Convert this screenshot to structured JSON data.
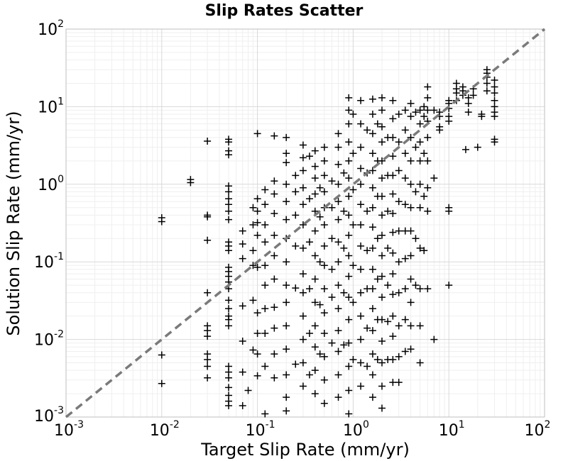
{
  "chart_data": {
    "type": "scatter",
    "title": "Slip Rates Scatter",
    "xlabel": "Target Slip Rate (mm/yr)",
    "ylabel": "Solution Slip Rate (mm/yr)",
    "xscale": "log",
    "yscale": "log",
    "xlim": [
      0.001,
      100
    ],
    "ylim": [
      0.001,
      100
    ],
    "grid": true,
    "x_ticks": [
      {
        "base": "10",
        "exp": "-3"
      },
      {
        "base": "10",
        "exp": "-2"
      },
      {
        "base": "10",
        "exp": "-1"
      },
      {
        "base": "10",
        "exp": "0"
      },
      {
        "base": "10",
        "exp": "1"
      },
      {
        "base": "10",
        "exp": "2"
      }
    ],
    "y_ticks": [
      {
        "base": "10",
        "exp": "-3"
      },
      {
        "base": "10",
        "exp": "-2"
      },
      {
        "base": "10",
        "exp": "-1"
      },
      {
        "base": "10",
        "exp": "0"
      },
      {
        "base": "10",
        "exp": "1"
      },
      {
        "base": "10",
        "exp": "2"
      }
    ],
    "marker": "plus",
    "marker_color": "#000000",
    "reference_line": {
      "style": "dashed",
      "color": "#7a7a7a",
      "x": [
        0.001,
        100
      ],
      "y": [
        0.001,
        100
      ]
    },
    "points": [
      [
        0.01,
        0.37
      ],
      [
        0.01,
        0.33
      ],
      [
        0.01,
        0.0063
      ],
      [
        0.01,
        0.0027
      ],
      [
        0.02,
        1.15
      ],
      [
        0.02,
        1.05
      ],
      [
        0.03,
        3.6
      ],
      [
        0.03,
        0.4
      ],
      [
        0.03,
        0.38
      ],
      [
        0.03,
        0.19
      ],
      [
        0.03,
        0.04
      ],
      [
        0.03,
        0.015
      ],
      [
        0.03,
        0.013
      ],
      [
        0.03,
        0.011
      ],
      [
        0.03,
        0.0065
      ],
      [
        0.03,
        0.0055
      ],
      [
        0.03,
        0.0045
      ],
      [
        0.03,
        0.0032
      ],
      [
        0.05,
        3.8
      ],
      [
        0.05,
        3.5
      ],
      [
        0.05,
        2.7
      ],
      [
        0.05,
        2.4
      ],
      [
        0.05,
        0.95
      ],
      [
        0.05,
        0.8
      ],
      [
        0.05,
        0.65
      ],
      [
        0.05,
        0.55
      ],
      [
        0.05,
        0.45
      ],
      [
        0.05,
        0.35
      ],
      [
        0.05,
        0.18
      ],
      [
        0.05,
        0.16
      ],
      [
        0.05,
        0.14
      ],
      [
        0.05,
        0.085
      ],
      [
        0.05,
        0.075
      ],
      [
        0.05,
        0.065
      ],
      [
        0.05,
        0.055
      ],
      [
        0.05,
        0.045
      ],
      [
        0.05,
        0.032
      ],
      [
        0.05,
        0.025
      ],
      [
        0.05,
        0.02
      ],
      [
        0.05,
        0.018
      ],
      [
        0.05,
        0.015
      ],
      [
        0.05,
        0.0045
      ],
      [
        0.05,
        0.0038
      ],
      [
        0.05,
        0.0032
      ],
      [
        0.05,
        0.0024
      ],
      [
        0.05,
        0.0019
      ],
      [
        0.05,
        0.0016
      ],
      [
        0.05,
        0.0014
      ],
      [
        0.07,
        0.25
      ],
      [
        0.07,
        0.17
      ],
      [
        0.07,
        0.11
      ],
      [
        0.07,
        0.027
      ],
      [
        0.07,
        0.0095
      ],
      [
        0.07,
        0.0038
      ],
      [
        0.07,
        0.0014
      ],
      [
        0.08,
        0.0022
      ],
      [
        0.09,
        0.5
      ],
      [
        0.09,
        0.3
      ],
      [
        0.09,
        0.14
      ],
      [
        0.09,
        0.09
      ],
      [
        0.09,
        0.032
      ],
      [
        0.09,
        0.0073
      ],
      [
        0.1,
        4.5
      ],
      [
        0.1,
        0.65
      ],
      [
        0.1,
        0.45
      ],
      [
        0.1,
        0.32
      ],
      [
        0.1,
        0.22
      ],
      [
        0.1,
        0.085
      ],
      [
        0.1,
        0.022
      ],
      [
        0.1,
        0.012
      ],
      [
        0.1,
        0.0065
      ],
      [
        0.1,
        0.0034
      ],
      [
        0.12,
        0.85
      ],
      [
        0.12,
        0.55
      ],
      [
        0.12,
        0.3
      ],
      [
        0.12,
        0.18
      ],
      [
        0.12,
        0.09
      ],
      [
        0.12,
        0.05
      ],
      [
        0.12,
        0.025
      ],
      [
        0.12,
        0.012
      ],
      [
        0.12,
        0.0045
      ],
      [
        0.12,
        0.0011
      ],
      [
        0.15,
        4.2
      ],
      [
        0.15,
        1.1
      ],
      [
        0.15,
        0.75
      ],
      [
        0.15,
        0.42
      ],
      [
        0.15,
        0.22
      ],
      [
        0.15,
        0.12
      ],
      [
        0.15,
        0.06
      ],
      [
        0.15,
        0.026
      ],
      [
        0.15,
        0.014
      ],
      [
        0.15,
        0.0065
      ],
      [
        0.15,
        0.0032
      ],
      [
        0.2,
        4.0
      ],
      [
        0.2,
        2.5
      ],
      [
        0.2,
        1.9
      ],
      [
        0.2,
        1.0
      ],
      [
        0.2,
        0.6
      ],
      [
        0.2,
        0.35
      ],
      [
        0.2,
        0.2
      ],
      [
        0.2,
        0.1
      ],
      [
        0.2,
        0.05
      ],
      [
        0.2,
        0.03
      ],
      [
        0.2,
        0.015
      ],
      [
        0.2,
        0.0075
      ],
      [
        0.2,
        0.0035
      ],
      [
        0.2,
        0.0018
      ],
      [
        0.2,
        0.0012
      ],
      [
        0.25,
        1.3
      ],
      [
        0.25,
        0.8
      ],
      [
        0.25,
        0.4
      ],
      [
        0.25,
        0.16
      ],
      [
        0.25,
        0.046
      ],
      [
        0.25,
        0.0048
      ],
      [
        0.3,
        3.2
      ],
      [
        0.3,
        2.2
      ],
      [
        0.3,
        1.5
      ],
      [
        0.3,
        0.9
      ],
      [
        0.3,
        0.55
      ],
      [
        0.3,
        0.3
      ],
      [
        0.3,
        0.15
      ],
      [
        0.3,
        0.07
      ],
      [
        0.3,
        0.04
      ],
      [
        0.3,
        0.02
      ],
      [
        0.3,
        0.01
      ],
      [
        0.3,
        0.005
      ],
      [
        0.3,
        0.0025
      ],
      [
        0.35,
        2.3
      ],
      [
        0.35,
        0.65
      ],
      [
        0.35,
        0.18
      ],
      [
        0.35,
        0.045
      ],
      [
        0.35,
        0.012
      ],
      [
        0.35,
        0.0035
      ],
      [
        0.4,
        2.7
      ],
      [
        0.4,
        1.7
      ],
      [
        0.4,
        1.2
      ],
      [
        0.4,
        0.75
      ],
      [
        0.4,
        0.45
      ],
      [
        0.4,
        0.25
      ],
      [
        0.4,
        0.12
      ],
      [
        0.4,
        0.06
      ],
      [
        0.4,
        0.03
      ],
      [
        0.4,
        0.015
      ],
      [
        0.4,
        0.008
      ],
      [
        0.4,
        0.004
      ],
      [
        0.4,
        0.002
      ],
      [
        0.45,
        0.9
      ],
      [
        0.45,
        0.38
      ],
      [
        0.45,
        0.1
      ],
      [
        0.45,
        0.028
      ],
      [
        0.45,
        0.0065
      ],
      [
        0.5,
        3.0
      ],
      [
        0.5,
        2.0
      ],
      [
        0.5,
        1.3
      ],
      [
        0.5,
        0.8
      ],
      [
        0.5,
        0.5
      ],
      [
        0.5,
        0.3
      ],
      [
        0.5,
        0.16
      ],
      [
        0.5,
        0.09
      ],
      [
        0.5,
        0.045
      ],
      [
        0.5,
        0.022
      ],
      [
        0.5,
        0.012
      ],
      [
        0.5,
        0.006
      ],
      [
        0.5,
        0.003
      ],
      [
        0.5,
        0.0015
      ],
      [
        0.6,
        1.1
      ],
      [
        0.6,
        0.5
      ],
      [
        0.6,
        0.2
      ],
      [
        0.6,
        0.08
      ],
      [
        0.6,
        0.035
      ],
      [
        0.6,
        0.009
      ],
      [
        0.7,
        4.5
      ],
      [
        0.7,
        3.0
      ],
      [
        0.7,
        1.8
      ],
      [
        0.7,
        1.0
      ],
      [
        0.7,
        0.6
      ],
      [
        0.7,
        0.35
      ],
      [
        0.7,
        0.18
      ],
      [
        0.7,
        0.1
      ],
      [
        0.7,
        0.05
      ],
      [
        0.7,
        0.025
      ],
      [
        0.7,
        0.013
      ],
      [
        0.7,
        0.007
      ],
      [
        0.7,
        0.0035
      ],
      [
        0.7,
        0.0018
      ],
      [
        0.8,
        1.4
      ],
      [
        0.8,
        0.45
      ],
      [
        0.8,
        0.15
      ],
      [
        0.8,
        0.04
      ],
      [
        0.8,
        0.0085
      ],
      [
        0.9,
        13.0
      ],
      [
        0.9,
        9.0
      ],
      [
        0.9,
        6.0
      ],
      [
        0.9,
        3.5
      ],
      [
        0.9,
        2.0
      ],
      [
        0.9,
        1.2
      ],
      [
        0.9,
        0.7
      ],
      [
        0.9,
        0.4
      ],
      [
        0.9,
        0.22
      ],
      [
        0.9,
        0.12
      ],
      [
        0.9,
        0.065
      ],
      [
        0.9,
        0.035
      ],
      [
        0.9,
        0.018
      ],
      [
        0.9,
        0.009
      ],
      [
        0.9,
        0.0045
      ],
      [
        0.9,
        0.0022
      ],
      [
        0.9,
        0.0011
      ],
      [
        1.0,
        8.0
      ],
      [
        1.0,
        2.5
      ],
      [
        1.0,
        0.85
      ],
      [
        1.0,
        0.3
      ],
      [
        1.0,
        0.09
      ],
      [
        1.0,
        0.03
      ],
      [
        1.0,
        0.0055
      ],
      [
        1.2,
        12.0
      ],
      [
        1.2,
        6.0
      ],
      [
        1.2,
        3.0
      ],
      [
        1.2,
        1.6
      ],
      [
        1.2,
        1.0
      ],
      [
        1.2,
        0.55
      ],
      [
        1.2,
        0.3
      ],
      [
        1.2,
        0.16
      ],
      [
        1.2,
        0.08
      ],
      [
        1.2,
        0.04
      ],
      [
        1.2,
        0.02
      ],
      [
        1.2,
        0.01
      ],
      [
        1.2,
        0.005
      ],
      [
        1.2,
        0.0025
      ],
      [
        1.4,
        5.0
      ],
      [
        1.4,
        1.4
      ],
      [
        1.4,
        0.45
      ],
      [
        1.4,
        0.14
      ],
      [
        1.4,
        0.045
      ],
      [
        1.4,
        0.014
      ],
      [
        1.4,
        0.0045
      ],
      [
        1.6,
        12.5
      ],
      [
        1.6,
        8.0
      ],
      [
        1.6,
        4.5
      ],
      [
        1.6,
        2.5
      ],
      [
        1.6,
        1.5
      ],
      [
        1.6,
        0.9
      ],
      [
        1.6,
        0.5
      ],
      [
        1.6,
        0.28
      ],
      [
        1.6,
        0.15
      ],
      [
        1.6,
        0.08
      ],
      [
        1.6,
        0.045
      ],
      [
        1.6,
        0.025
      ],
      [
        1.6,
        0.013
      ],
      [
        1.6,
        0.0065
      ],
      [
        1.6,
        0.0035
      ],
      [
        1.6,
        0.0018
      ],
      [
        1.8,
        6.0
      ],
      [
        1.8,
        2.0
      ],
      [
        1.8,
        0.7
      ],
      [
        1.8,
        0.2
      ],
      [
        1.8,
        0.06
      ],
      [
        1.8,
        0.018
      ],
      [
        1.8,
        0.0055
      ],
      [
        2.0,
        13.0
      ],
      [
        2.0,
        9.0
      ],
      [
        2.0,
        5.5
      ],
      [
        2.0,
        3.5
      ],
      [
        2.0,
        2.0
      ],
      [
        2.0,
        1.2
      ],
      [
        2.0,
        0.7
      ],
      [
        2.0,
        0.4
      ],
      [
        2.0,
        0.22
      ],
      [
        2.0,
        0.12
      ],
      [
        2.0,
        0.065
      ],
      [
        2.0,
        0.035
      ],
      [
        2.0,
        0.018
      ],
      [
        2.0,
        0.0095
      ],
      [
        2.0,
        0.005
      ],
      [
        2.0,
        0.0025
      ],
      [
        2.0,
        0.0013
      ],
      [
        2.3,
        4.0
      ],
      [
        2.3,
        1.3
      ],
      [
        2.3,
        0.45
      ],
      [
        2.3,
        0.15
      ],
      [
        2.3,
        0.05
      ],
      [
        2.3,
        0.017
      ],
      [
        2.3,
        0.0055
      ],
      [
        2.6,
        12.0
      ],
      [
        2.6,
        7.0
      ],
      [
        2.6,
        4.0
      ],
      [
        2.6,
        2.3
      ],
      [
        2.6,
        1.3
      ],
      [
        2.6,
        0.75
      ],
      [
        2.6,
        0.42
      ],
      [
        2.6,
        0.24
      ],
      [
        2.6,
        0.13
      ],
      [
        2.6,
        0.07
      ],
      [
        2.6,
        0.038
      ],
      [
        2.6,
        0.02
      ],
      [
        2.6,
        0.011
      ],
      [
        2.6,
        0.0055
      ],
      [
        2.6,
        0.0028
      ],
      [
        3.0,
        8.0
      ],
      [
        3.0,
        3.5
      ],
      [
        3.0,
        1.5
      ],
      [
        3.0,
        0.6
      ],
      [
        3.0,
        0.25
      ],
      [
        3.0,
        0.1
      ],
      [
        3.0,
        0.04
      ],
      [
        3.0,
        0.015
      ],
      [
        3.0,
        0.006
      ],
      [
        3.0,
        0.0028
      ],
      [
        3.5,
        9.0
      ],
      [
        3.5,
        5.0
      ],
      [
        3.5,
        2.5
      ],
      [
        3.5,
        1.2
      ],
      [
        3.5,
        0.55
      ],
      [
        3.5,
        0.25
      ],
      [
        3.5,
        0.11
      ],
      [
        3.5,
        0.045
      ],
      [
        3.5,
        0.018
      ],
      [
        3.5,
        0.007
      ],
      [
        4.0,
        11.0
      ],
      [
        4.0,
        7.5
      ],
      [
        4.0,
        4.0
      ],
      [
        4.0,
        2.0
      ],
      [
        4.0,
        1.0
      ],
      [
        4.0,
        0.5
      ],
      [
        4.0,
        0.25
      ],
      [
        4.0,
        0.12
      ],
      [
        4.0,
        0.06
      ],
      [
        4.0,
        0.03
      ],
      [
        4.0,
        0.015
      ],
      [
        4.0,
        0.0075
      ],
      [
        4.5,
        8.5
      ],
      [
        4.5,
        3.0
      ],
      [
        4.5,
        0.8
      ],
      [
        4.5,
        0.2
      ],
      [
        4.5,
        0.05
      ],
      [
        5.0,
        9.0
      ],
      [
        5.0,
        6.0
      ],
      [
        5.0,
        3.5
      ],
      [
        5.0,
        2.0
      ],
      [
        5.0,
        1.0
      ],
      [
        5.0,
        0.5
      ],
      [
        5.0,
        0.15
      ],
      [
        5.0,
        0.045
      ],
      [
        5.0,
        0.015
      ],
      [
        5.0,
        0.005
      ],
      [
        5.5,
        10.0
      ],
      [
        5.5,
        7.5
      ],
      [
        5.5,
        2.5
      ],
      [
        5.5,
        0.7
      ],
      [
        5.5,
        0.14
      ],
      [
        6.0,
        18.0
      ],
      [
        6.0,
        13.0
      ],
      [
        6.0,
        9.0
      ],
      [
        6.0,
        6.5
      ],
      [
        6.0,
        4.0
      ],
      [
        6.0,
        2.0
      ],
      [
        6.0,
        0.9
      ],
      [
        6.0,
        0.45
      ],
      [
        6.0,
        0.045
      ],
      [
        7.0,
        9.0
      ],
      [
        7.0,
        1.2
      ],
      [
        7.0,
        0.01
      ],
      [
        8.0,
        8.5
      ],
      [
        8.0,
        7.5
      ],
      [
        8.0,
        5.5
      ],
      [
        8.0,
        5.0
      ],
      [
        10.0,
        12.0
      ],
      [
        10.0,
        11.0
      ],
      [
        10.0,
        9.5
      ],
      [
        10.0,
        7.5
      ],
      [
        10.0,
        6.5
      ],
      [
        10.0,
        0.5
      ],
      [
        10.0,
        0.45
      ],
      [
        10.0,
        0.05
      ],
      [
        12.0,
        20.0
      ],
      [
        12.0,
        17.0
      ],
      [
        12.0,
        15.0
      ],
      [
        12.0,
        12.0
      ],
      [
        14.0,
        18.0
      ],
      [
        14.0,
        16.0
      ],
      [
        14.0,
        14.0
      ],
      [
        15.0,
        2.8
      ],
      [
        16.0,
        13.0
      ],
      [
        16.0,
        11.0
      ],
      [
        16.0,
        8.5
      ],
      [
        18.0,
        17.0
      ],
      [
        18.0,
        14.0
      ],
      [
        20.0,
        3.0
      ],
      [
        22.0,
        8.0
      ],
      [
        22.0,
        7.5
      ],
      [
        25.0,
        30.0
      ],
      [
        25.0,
        27.0
      ],
      [
        25.0,
        24.0
      ],
      [
        25.0,
        20.0
      ],
      [
        25.0,
        16.0
      ],
      [
        30.0,
        22.0
      ],
      [
        30.0,
        18.0
      ],
      [
        30.0,
        15.0
      ],
      [
        30.0,
        12.0
      ],
      [
        30.0,
        10.0
      ],
      [
        30.0,
        8.5
      ],
      [
        30.0,
        7.5
      ],
      [
        30.0,
        3.8
      ],
      [
        30.0,
        3.5
      ]
    ]
  }
}
